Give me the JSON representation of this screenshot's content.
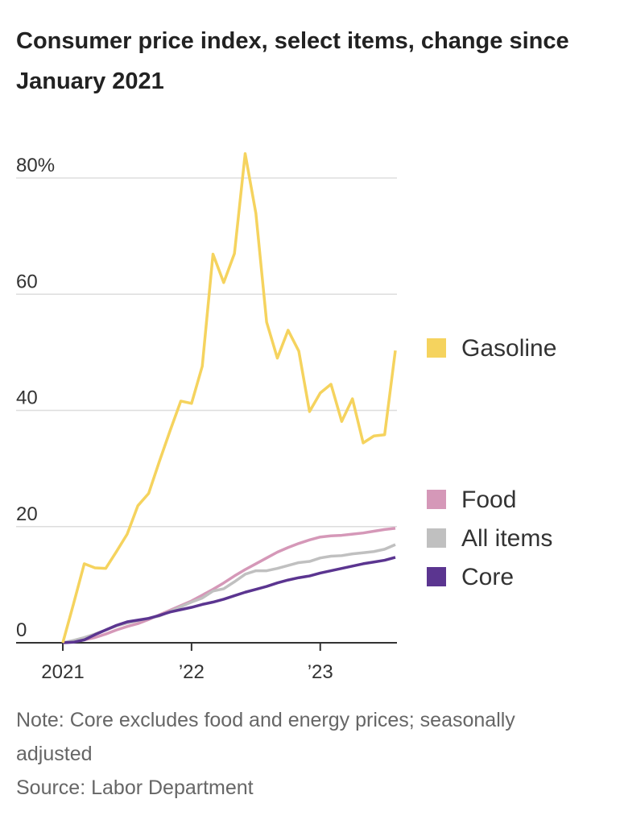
{
  "chart_data": {
    "type": "line",
    "title": "Consumer price index, select items, change since January 2021",
    "note": "Note: Core excludes food and energy prices; seasonally adjusted",
    "source": "Source: Labor Department",
    "x": [
      0,
      1,
      2,
      3,
      4,
      5,
      6,
      7,
      8,
      9,
      10,
      11,
      12,
      13,
      14,
      15,
      16,
      17,
      18,
      19,
      20,
      21,
      22,
      23,
      24,
      25,
      26,
      27,
      28,
      29,
      30,
      31
    ],
    "xlim": [
      0,
      31
    ],
    "xticks": [
      {
        "value": 0,
        "label": "2021"
      },
      {
        "value": 12,
        "label": "’22"
      },
      {
        "value": 24,
        "label": "’23"
      }
    ],
    "ylim": [
      0,
      80
    ],
    "yticks": [
      0,
      20,
      40,
      60,
      {
        "value": 80,
        "label": "80%"
      }
    ],
    "grid": true,
    "series": [
      {
        "name": "Gasoline",
        "color": "#f5d35e",
        "values": [
          0,
          6.7,
          13.6,
          12.9,
          12.8,
          15.7,
          18.7,
          23.6,
          25.7,
          31.2,
          36.5,
          41.6,
          41.2,
          47.6,
          66.9,
          62.0,
          67.0,
          84.2,
          73.9,
          55.2,
          49.0,
          53.8,
          50.2,
          39.8,
          43.0,
          44.5,
          38.1,
          42.0,
          34.4,
          35.6,
          35.8,
          50.3
        ]
      },
      {
        "name": "Food",
        "color": "#d598b8",
        "values": [
          0,
          0.2,
          0.5,
          0.9,
          1.5,
          2.2,
          2.8,
          3.3,
          4.0,
          4.8,
          5.6,
          6.4,
          7.2,
          8.2,
          9.2,
          10.3,
          11.5,
          12.6,
          13.6,
          14.6,
          15.6,
          16.4,
          17.1,
          17.7,
          18.2,
          18.4,
          18.5,
          18.7,
          18.9,
          19.2,
          19.5,
          19.7
        ]
      },
      {
        "name": "All items",
        "color": "#c0c0c0",
        "values": [
          0,
          0.4,
          0.9,
          1.5,
          2.2,
          2.9,
          3.4,
          3.8,
          4.2,
          4.6,
          5.4,
          6.2,
          7.0,
          7.7,
          8.9,
          9.3,
          10.5,
          11.8,
          12.4,
          12.4,
          12.8,
          13.3,
          13.8,
          14.0,
          14.6,
          14.9,
          15.0,
          15.3,
          15.5,
          15.7,
          16.1,
          16.9
        ]
      },
      {
        "name": "Core",
        "color": "#5b3590",
        "values": [
          0,
          0.1,
          0.5,
          1.4,
          2.2,
          3.0,
          3.6,
          3.9,
          4.2,
          4.7,
          5.3,
          5.7,
          6.1,
          6.6,
          7.0,
          7.5,
          8.1,
          8.7,
          9.2,
          9.7,
          10.3,
          10.8,
          11.2,
          11.5,
          12.0,
          12.4,
          12.8,
          13.2,
          13.6,
          13.9,
          14.2,
          14.7
        ]
      }
    ]
  }
}
